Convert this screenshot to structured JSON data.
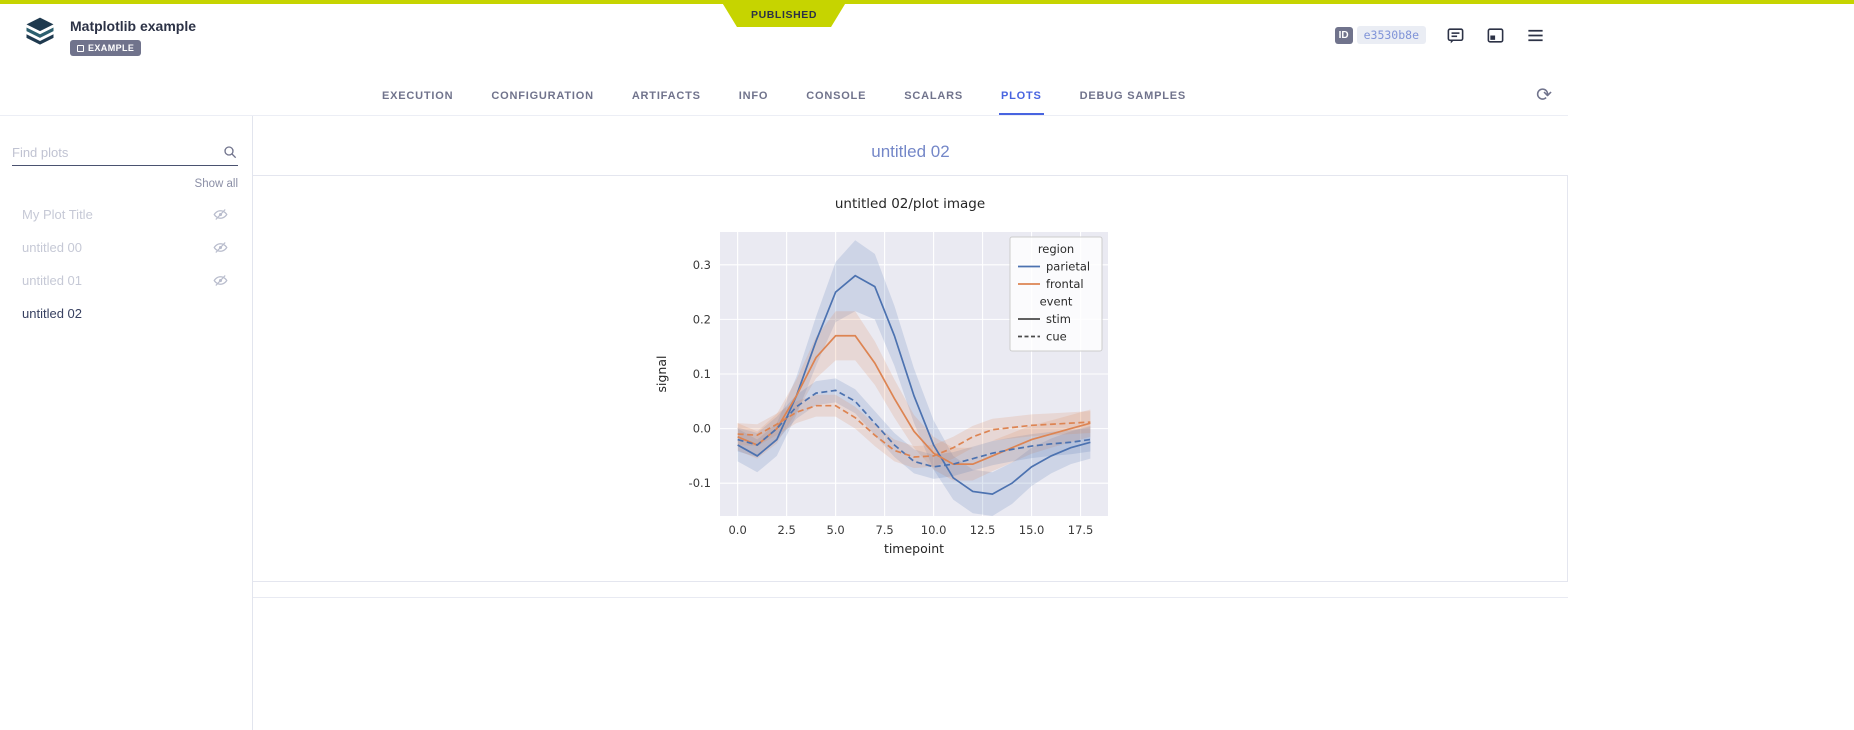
{
  "colors": {
    "published_bg": "#c6d400",
    "accent_blue": "#4864e0",
    "title_blue": "#7487c8",
    "text_dark": "#2c3246",
    "text_grey": "#70738c",
    "hidden_text": "#c6c9d6",
    "border": "#e2e5ee"
  },
  "banner": {
    "published_label": "PUBLISHED"
  },
  "header": {
    "title": "Matplotlib example",
    "badge": "EXAMPLE",
    "id_label": "ID",
    "id_value": "e3530b8e"
  },
  "icons": {
    "logo": "app-logo-layers",
    "comment": "comment-bubble",
    "layout": "panel-layout",
    "menu": "hamburger",
    "refresh": "auto-refresh ⟳",
    "search": "magnifier",
    "eye_off": "eye-hidden"
  },
  "tabs": {
    "items": [
      {
        "label": "EXECUTION",
        "active": false
      },
      {
        "label": "CONFIGURATION",
        "active": false
      },
      {
        "label": "ARTIFACTS",
        "active": false
      },
      {
        "label": "INFO",
        "active": false
      },
      {
        "label": "CONSOLE",
        "active": false
      },
      {
        "label": "SCALARS",
        "active": false
      },
      {
        "label": "PLOTS",
        "active": true
      },
      {
        "label": "DEBUG SAMPLES",
        "active": false
      }
    ]
  },
  "sidebar": {
    "search_placeholder": "Find plots",
    "show_all_label": "Show all",
    "plots": [
      {
        "label": "My Plot Title",
        "hidden": true
      },
      {
        "label": "untitled 00",
        "hidden": true
      },
      {
        "label": "untitled 01",
        "hidden": true
      },
      {
        "label": "untitled 02",
        "hidden": false
      }
    ]
  },
  "main": {
    "section_title": "untitled 02"
  },
  "chart_data": {
    "type": "line",
    "title": "untitled 02/plot image",
    "xlabel": "timepoint",
    "ylabel": "signal",
    "xlim": [
      -0.9,
      18.9
    ],
    "ylim": [
      -0.16,
      0.36
    ],
    "x_ticks": [
      0.0,
      2.5,
      5.0,
      7.5,
      10.0,
      12.5,
      15.0,
      17.5
    ],
    "y_ticks": [
      -0.1,
      0.0,
      0.1,
      0.2,
      0.3
    ],
    "grid": true,
    "background": "#eaeaf2",
    "x": [
      0,
      1,
      2,
      3,
      4,
      5,
      6,
      7,
      8,
      9,
      10,
      11,
      12,
      13,
      14,
      15,
      16,
      17,
      18
    ],
    "series": [
      {
        "name": "parietal / stim",
        "region": "parietal",
        "event": "stim",
        "color": "#4c72b0",
        "dash": false,
        "values": [
          -0.03,
          -0.05,
          -0.02,
          0.06,
          0.16,
          0.25,
          0.28,
          0.26,
          0.17,
          0.06,
          -0.03,
          -0.09,
          -0.115,
          -0.12,
          -0.1,
          -0.07,
          -0.05,
          -0.035,
          -0.025
        ],
        "band": [
          0.03,
          0.03,
          0.03,
          0.035,
          0.045,
          0.055,
          0.065,
          0.06,
          0.055,
          0.05,
          0.045,
          0.04,
          0.04,
          0.04,
          0.038,
          0.035,
          0.032,
          0.03,
          0.03
        ]
      },
      {
        "name": "frontal / stim",
        "region": "frontal",
        "event": "stim",
        "color": "#dd8452",
        "dash": false,
        "values": [
          -0.015,
          -0.03,
          0.0,
          0.06,
          0.13,
          0.17,
          0.17,
          0.12,
          0.055,
          -0.005,
          -0.045,
          -0.065,
          -0.065,
          -0.05,
          -0.035,
          -0.02,
          -0.01,
          0.0,
          0.01
        ],
        "band": [
          0.025,
          0.025,
          0.027,
          0.03,
          0.038,
          0.045,
          0.045,
          0.04,
          0.035,
          0.03,
          0.03,
          0.03,
          0.03,
          0.028,
          0.027,
          0.026,
          0.025,
          0.025,
          0.025
        ]
      },
      {
        "name": "parietal / cue",
        "region": "parietal",
        "event": "cue",
        "color": "#4c72b0",
        "dash": true,
        "values": [
          -0.02,
          -0.03,
          0.0,
          0.04,
          0.065,
          0.07,
          0.05,
          0.01,
          -0.03,
          -0.06,
          -0.07,
          -0.065,
          -0.055,
          -0.045,
          -0.038,
          -0.032,
          -0.028,
          -0.025,
          -0.02
        ],
        "band": [
          0.022,
          0.022,
          0.022,
          0.022,
          0.022,
          0.022,
          0.022,
          0.022,
          0.022,
          0.022,
          0.022,
          0.022,
          0.022,
          0.022,
          0.022,
          0.022,
          0.022,
          0.022,
          0.022
        ]
      },
      {
        "name": "frontal / cue",
        "region": "frontal",
        "event": "cue",
        "color": "#dd8452",
        "dash": true,
        "values": [
          -0.01,
          -0.012,
          0.008,
          0.03,
          0.042,
          0.042,
          0.02,
          -0.012,
          -0.04,
          -0.052,
          -0.05,
          -0.035,
          -0.015,
          -0.002,
          0.002,
          0.006,
          0.008,
          0.01,
          0.012
        ],
        "band": [
          0.02,
          0.02,
          0.02,
          0.02,
          0.02,
          0.02,
          0.02,
          0.02,
          0.02,
          0.02,
          0.02,
          0.02,
          0.02,
          0.02,
          0.02,
          0.02,
          0.02,
          0.02,
          0.02
        ]
      }
    ],
    "legend": {
      "position": "upper right",
      "entries": [
        {
          "label": "region",
          "type": "header"
        },
        {
          "label": "parietal",
          "type": "line",
          "color": "#4c72b0",
          "dash": false
        },
        {
          "label": "frontal",
          "type": "line",
          "color": "#dd8452",
          "dash": false
        },
        {
          "label": "event",
          "type": "header"
        },
        {
          "label": "stim",
          "type": "line",
          "color": "#4a4a4a",
          "dash": false
        },
        {
          "label": "cue",
          "type": "line",
          "color": "#4a4a4a",
          "dash": true
        }
      ]
    }
  }
}
